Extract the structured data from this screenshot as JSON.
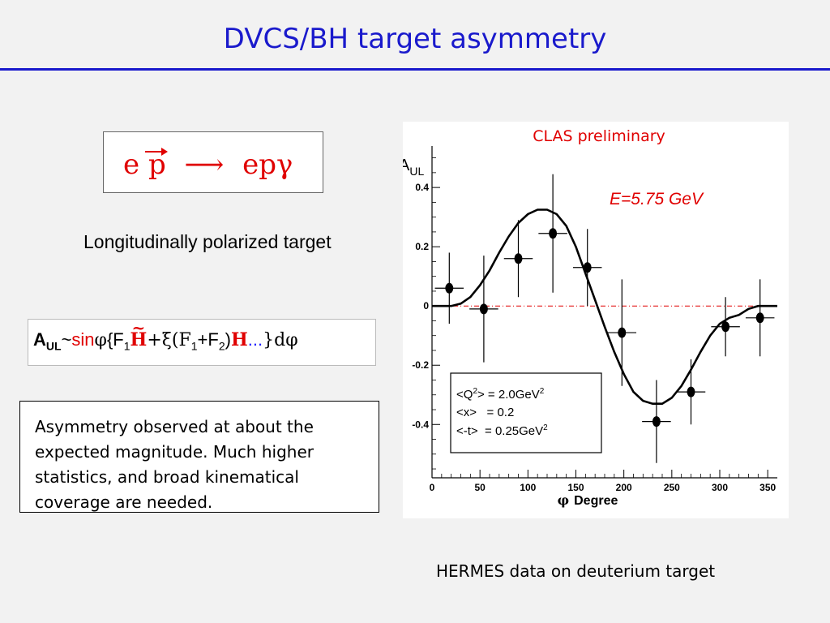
{
  "title": "DVCS/BH target asymmetry",
  "reaction": {
    "e": "e",
    "p": "p",
    "arrow": "⟶",
    "final": "epγ"
  },
  "polarization_text": "Longitudinally polarized target",
  "formula": {
    "a": "A",
    "a_sub": "UL",
    "tilde": "~",
    "sin": "sin",
    "phi": "φ",
    "open": "{F",
    "f_sub": "1",
    "H": "H",
    "hat": "~",
    "plus_xi": "+ξ(F",
    "sub1": "1",
    "plusF": "+F",
    "sub2": "2",
    "close_paren": ")",
    "H2": "H",
    "dots": "...",
    "end": "}dφ"
  },
  "summary_text": "Asymmetry observed at about the expected magnitude. Much higher statistics, and broad kinematical coverage are needed.",
  "footer": "HERMES data on deuterium target",
  "chart_data": {
    "type": "scatter",
    "title": "CLAS preliminary",
    "annotation": "E=5.75 GeV",
    "ylabel_main": "A",
    "ylabel_sub": "UL",
    "xlabel_symbol": "φ",
    "xlabel": "Degree",
    "xlim": [
      0,
      360
    ],
    "ylim": [
      -0.58,
      0.54
    ],
    "xticks": [
      0,
      50,
      100,
      150,
      200,
      250,
      300,
      350
    ],
    "yticks": [
      -0.4,
      -0.2,
      0,
      0.2,
      0.4
    ],
    "ytick_labels": [
      "-0.4",
      "-0.2",
      "0",
      "0.2",
      "0.4"
    ],
    "points": [
      {
        "x": 18,
        "y": 0.06,
        "xerr": 15,
        "yerr": 0.12
      },
      {
        "x": 54,
        "y": -0.01,
        "xerr": 15,
        "yerr": 0.18
      },
      {
        "x": 90,
        "y": 0.16,
        "xerr": 15,
        "yerr": 0.13
      },
      {
        "x": 126,
        "y": 0.245,
        "xerr": 15,
        "yerr": 0.2
      },
      {
        "x": 162,
        "y": 0.13,
        "xerr": 15,
        "yerr": 0.13
      },
      {
        "x": 198,
        "y": -0.09,
        "xerr": 15,
        "yerr": 0.18
      },
      {
        "x": 234,
        "y": -0.39,
        "xerr": 15,
        "yerr": 0.14
      },
      {
        "x": 270,
        "y": -0.29,
        "xerr": 15,
        "yerr": 0.11
      },
      {
        "x": 306,
        "y": -0.07,
        "xerr": 15,
        "yerr": 0.1
      },
      {
        "x": 342,
        "y": -0.04,
        "xerr": 15,
        "yerr": 0.13
      }
    ],
    "fit_curve": {
      "x": [
        0,
        10,
        20,
        30,
        40,
        50,
        60,
        70,
        80,
        90,
        100,
        110,
        120,
        130,
        140,
        150,
        160,
        170,
        180,
        190,
        200,
        210,
        220,
        230,
        240,
        250,
        260,
        270,
        280,
        290,
        300,
        310,
        320,
        330,
        340,
        350,
        360
      ],
      "y": [
        0,
        0,
        0,
        0.008,
        0.03,
        0.07,
        0.12,
        0.18,
        0.235,
        0.28,
        0.31,
        0.325,
        0.325,
        0.31,
        0.27,
        0.2,
        0.11,
        0.02,
        -0.07,
        -0.155,
        -0.23,
        -0.29,
        -0.32,
        -0.33,
        -0.33,
        -0.31,
        -0.27,
        -0.215,
        -0.155,
        -0.1,
        -0.06,
        -0.04,
        -0.03,
        -0.01,
        0,
        0,
        0
      ]
    },
    "reference_line_y": 0,
    "info_box": [
      {
        "label": "<Q",
        "sup": "2",
        "mid": "> = 2.0GeV",
        "sup2": "2"
      },
      {
        "label": "<x>",
        "sup": "",
        "mid": "   = 0.2",
        "sup2": ""
      },
      {
        "label": "<-t>",
        "sup": "",
        "mid": "  = 0.25GeV",
        "sup2": "2"
      }
    ],
    "colors": {
      "title": "#e00000",
      "annotation": "#e00000",
      "reference_line": "#e00000"
    },
    "grid": false
  }
}
